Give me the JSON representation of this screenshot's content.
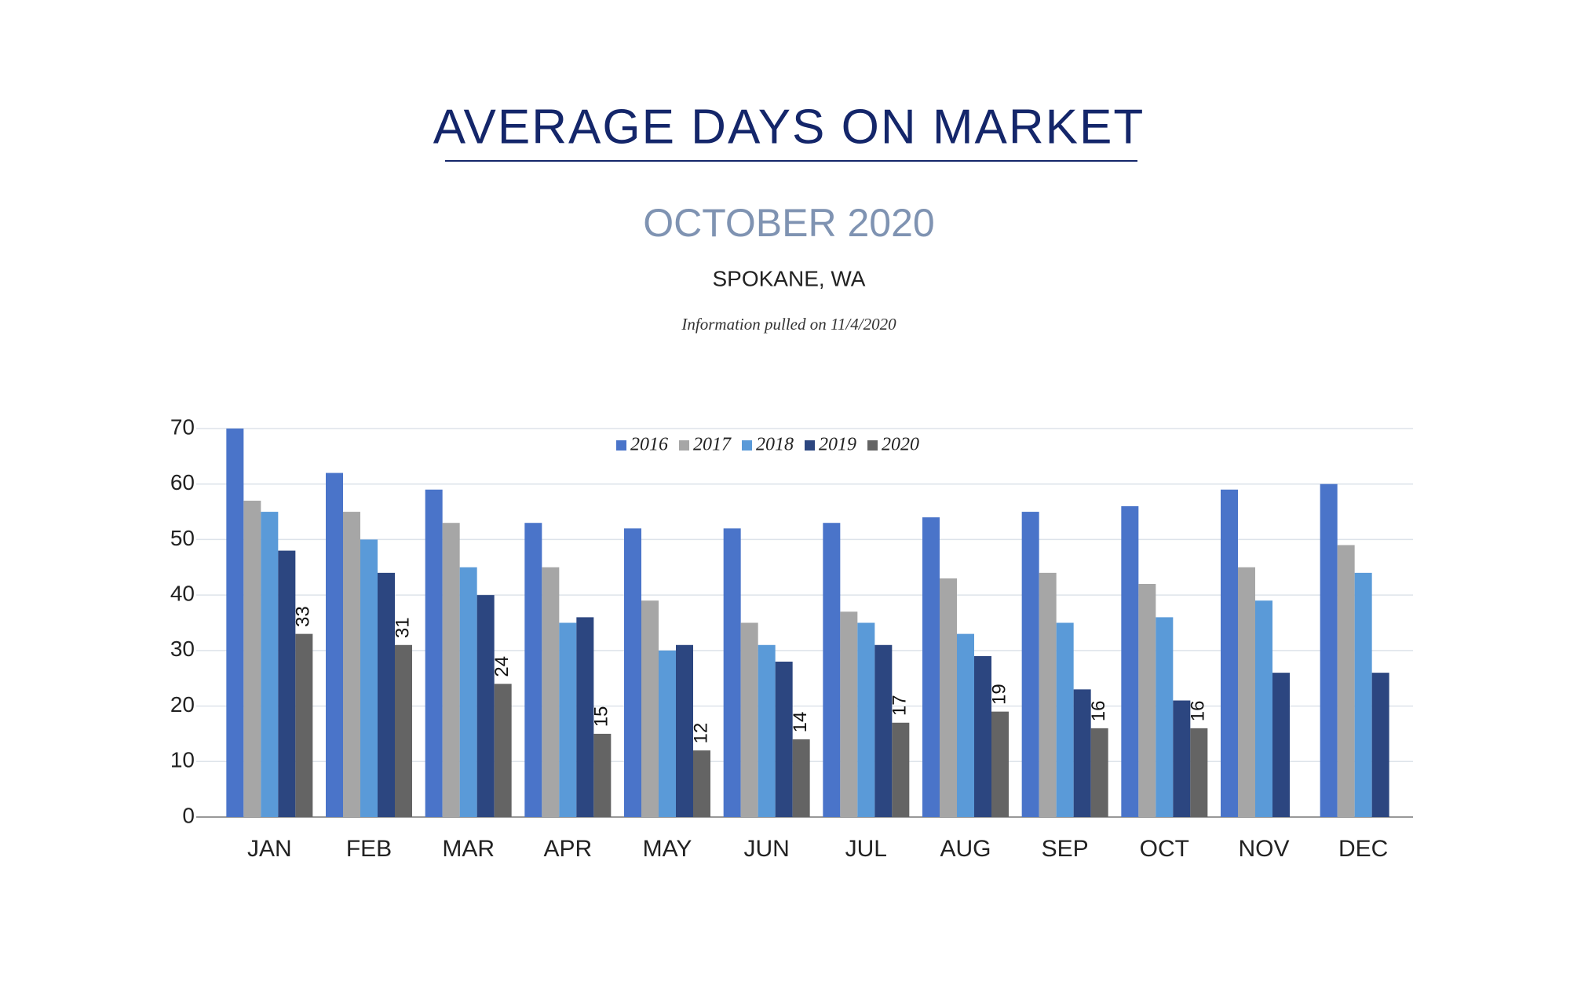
{
  "chart_data": {
    "type": "bar",
    "title": "AVERAGE DAYS ON MARKET",
    "subtitle": "OCTOBER 2020",
    "location": "SPOKANE, WA",
    "note": "Information pulled on 11/4/2020",
    "categories": [
      "JAN",
      "FEB",
      "MAR",
      "APR",
      "MAY",
      "JUN",
      "JUL",
      "AUG",
      "SEP",
      "OCT",
      "NOV",
      "DEC"
    ],
    "series": [
      {
        "name": "2016",
        "color": "#4a74c9",
        "values": [
          70,
          62,
          59,
          53,
          52,
          52,
          53,
          54,
          55,
          56,
          59,
          60
        ]
      },
      {
        "name": "2017",
        "color": "#a6a6a6",
        "values": [
          57,
          55,
          53,
          45,
          39,
          35,
          37,
          43,
          44,
          42,
          45,
          49
        ]
      },
      {
        "name": "2018",
        "color": "#5a9ad8",
        "values": [
          55,
          50,
          45,
          35,
          30,
          31,
          35,
          33,
          35,
          36,
          39,
          44
        ]
      },
      {
        "name": "2019",
        "color": "#2c4680",
        "values": [
          48,
          44,
          40,
          36,
          31,
          28,
          31,
          29,
          23,
          21,
          26,
          26
        ]
      },
      {
        "name": "2020",
        "color": "#646464",
        "values": [
          33,
          31,
          24,
          15,
          12,
          14,
          17,
          19,
          16,
          16,
          null,
          null
        ],
        "data_labels": true
      }
    ],
    "ylim": [
      0,
      70
    ],
    "yticks": [
      0,
      10,
      20,
      30,
      40,
      50,
      60,
      70
    ],
    "grid": true,
    "legend": "top"
  }
}
